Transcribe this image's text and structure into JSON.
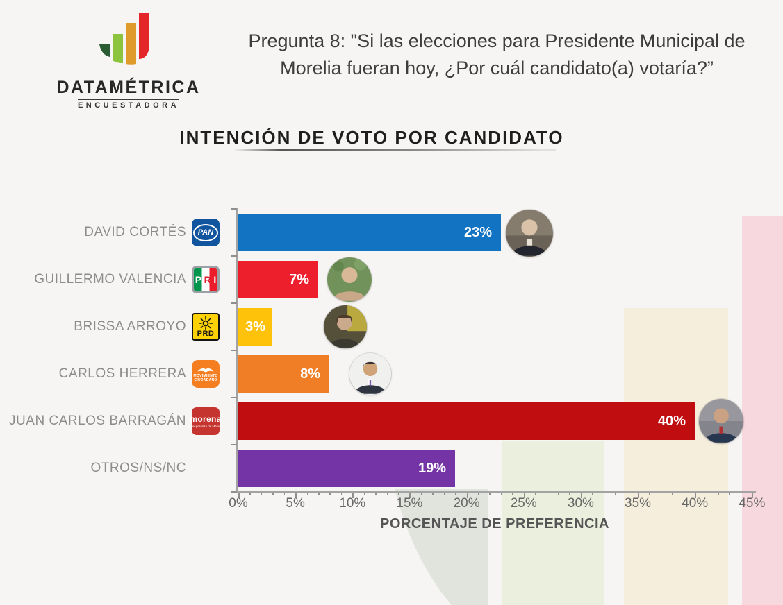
{
  "header": {
    "brand": "DATAMÉTRICA",
    "brand_tagline": "ENCUESTADORA",
    "question_line1": "Pregunta 8: \"Si las elecciones para Presidente Municipal de",
    "question_line2": "Morelia fueran hoy, ¿Por cuál candidato(a) votaría?”"
  },
  "chart": {
    "title": "INTENCIÓN DE VOTO POR CANDIDATO",
    "xlabel": "PORCENTAJE DE PREFERENCIA"
  },
  "chart_data": {
    "type": "bar",
    "orientation": "horizontal",
    "title": "INTENCIÓN DE VOTO POR CANDIDATO",
    "xlabel": "PORCENTAJE DE PREFERENCIA",
    "xlim": [
      0,
      45
    ],
    "x_tick_labels": [
      "0%",
      "5%",
      "10%",
      "15%",
      "20%",
      "25%",
      "30%",
      "35%",
      "40%",
      "45%"
    ],
    "grid": false,
    "categories": [
      "DAVID CORTÉS",
      "GUILLERMO VALENCIA",
      "BRISSA ARROYO",
      "CARLOS HERRERA",
      "JUAN CARLOS BARRAGÁN",
      "OTROS/NS/NC"
    ],
    "values": [
      23,
      7,
      3,
      8,
      40,
      19
    ],
    "value_labels": [
      "23%",
      "7%",
      "3%",
      "8%",
      "40%",
      "19%"
    ],
    "parties": [
      "PAN",
      "PRI",
      "PRD",
      "MOVIMIENTO CIUDADANO",
      "MORENA",
      null
    ],
    "bar_colors": [
      "#1273c2",
      "#ee1f2c",
      "#fec20b",
      "#f07e26",
      "#c00d10",
      "#7534a6"
    ],
    "has_photo": [
      true,
      true,
      true,
      true,
      true,
      false
    ]
  },
  "rows": [
    {
      "name": "DAVID CORTÉS",
      "label": "23%"
    },
    {
      "name": "GUILLERMO VALENCIA",
      "label": "7%"
    },
    {
      "name": "BRISSA ARROYO",
      "label": "3%"
    },
    {
      "name": "CARLOS HERRERA",
      "label": "8%"
    },
    {
      "name": "JUAN CARLOS BARRAGÁN",
      "label": "40%"
    },
    {
      "name": "OTROS/NS/NC",
      "label": "19%"
    }
  ],
  "party_logos": {
    "pan_text": "PAN",
    "pri_letters": [
      "P",
      "R",
      "I"
    ],
    "prd_text": "PRD",
    "mc_line1": "MOVIMIENTO",
    "mc_line2": "CIUDADANO",
    "morena_text": "morena",
    "morena_tagline": "la esperanza de México"
  },
  "colors": {
    "background": "#f6f5f3",
    "brand_bar_colors": [
      "#2a5c33",
      "#8cc43d",
      "#df9b2b",
      "#e52629"
    ],
    "watermark_bands": [
      "#d9ded6",
      "#eaf0dc",
      "#f4eddb",
      "#f8d6dd"
    ]
  }
}
